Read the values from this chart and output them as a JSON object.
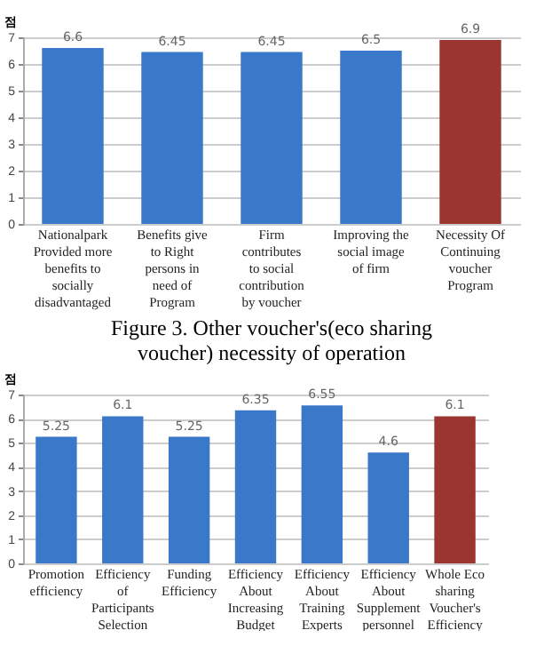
{
  "chart_data": [
    {
      "type": "bar",
      "ylabel": "점",
      "categories": [
        "Nationalpark Provided more benefits to socially disadvantaged",
        "Benefits give to Right persons in need of Program",
        "Firm contributes to social contribution by voucher",
        "Improving the social image of firm",
        "Necessity Of Continuing voucher Program"
      ],
      "values": [
        6.6,
        6.45,
        6.45,
        6.5,
        6.9
      ],
      "colors": [
        "#3a78c9",
        "#3a78c9",
        "#3a78c9",
        "#3a78c9",
        "#9b3530"
      ],
      "data_labels": true,
      "ylim": [
        0,
        7
      ],
      "yticks": [
        0,
        1,
        2,
        3,
        4,
        5,
        6,
        7
      ],
      "grid": "y",
      "legend": false,
      "annotations": [
        "Figure 3. Other voucher's(eco sharing voucher) necessity of operation"
      ]
    },
    {
      "type": "bar",
      "ylabel": "점",
      "categories": [
        "Promotion efficiency",
        "Efficiency of Participants Selection",
        "Funding Efficiency",
        "Efficiency About Increasing Budget",
        "Efficiency About Training Experts",
        "Efficiency About Supplement personnel",
        "Whole Eco sharing Voucher's Efficiency"
      ],
      "values": [
        5.25,
        6.1,
        5.25,
        6.35,
        6.55,
        4.6,
        6.1
      ],
      "colors": [
        "#3a78c9",
        "#3a78c9",
        "#3a78c9",
        "#3a78c9",
        "#3a78c9",
        "#3a78c9",
        "#9b3530"
      ],
      "data_labels": true,
      "ylim": [
        0,
        7
      ],
      "yticks": [
        0,
        1,
        2,
        3,
        4,
        5,
        6,
        7
      ],
      "grid": "y",
      "legend": false
    }
  ]
}
